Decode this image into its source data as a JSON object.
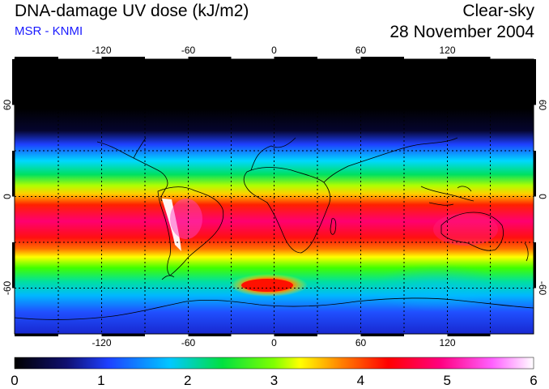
{
  "header": {
    "title": "DNA-damage UV dose (kJ/m2)",
    "source": "MSR - KNMI",
    "mode": "Clear-sky",
    "date": "28 November 2004"
  },
  "map": {
    "lon_ticks": [
      "-120",
      "-60",
      "0",
      "60",
      "120"
    ],
    "lat_ticks_left": [
      "60",
      "0",
      "-60"
    ],
    "lat_ticks_right": [
      "60",
      "0",
      "-60"
    ],
    "gridlines": true,
    "gridline_style": "dotted"
  },
  "colorbar": {
    "labels": [
      "0",
      "1",
      "2",
      "3",
      "4",
      "5",
      "6"
    ],
    "min": 0,
    "max": 6,
    "colors": [
      "#000000",
      "#1010a0",
      "#1e40ff",
      "#00c8ff",
      "#00e040",
      "#80ff00",
      "#ffff00",
      "#ff8000",
      "#ff0000",
      "#ff0080",
      "#ff60ff",
      "#ffffff"
    ]
  }
}
